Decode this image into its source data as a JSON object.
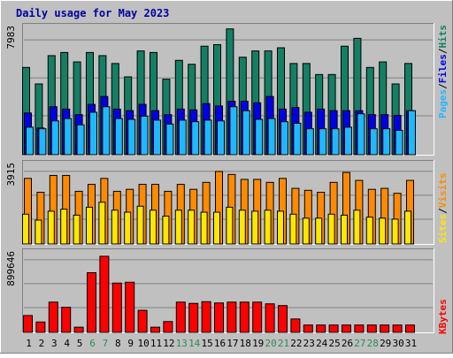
{
  "colors": {
    "background": "#c0c0c0",
    "title": "#0000a0",
    "hits": "#157f63",
    "files": "#0000e6",
    "pages": "#1fb8ff",
    "visits": "#ff8a00",
    "sites": "#ffe600",
    "kbytes": "#ff0000",
    "gridline": "#808080",
    "weekend_label": "#2e8b57",
    "weekday_label": "#000000"
  },
  "title": "Daily usage for May 2023",
  "legends": {
    "top": [
      "Pages",
      "/",
      "Files",
      "/",
      "Hits"
    ],
    "middle": [
      "Sites",
      "/",
      "Visits"
    ],
    "bottom": [
      "KBytes"
    ]
  },
  "axis_max_labels": {
    "top": "7983",
    "middle": "3915",
    "bottom": "899646"
  },
  "chart_data": [
    {
      "type": "bar",
      "name": "hits-files-pages",
      "categories": [
        "1",
        "2",
        "3",
        "4",
        "5",
        "6",
        "7",
        "8",
        "9",
        "10",
        "11",
        "12",
        "13",
        "14",
        "15",
        "16",
        "17",
        "18",
        "19",
        "20",
        "21",
        "22",
        "23",
        "24",
        "25",
        "26",
        "27",
        "28",
        "29",
        "30",
        "31"
      ],
      "weekend_days": [
        "6",
        "7",
        "13",
        "14",
        "20",
        "21",
        "27",
        "28"
      ],
      "ylim": [
        0,
        7983
      ],
      "series": [
        {
          "name": "Hits",
          "values": [
            5550,
            4500,
            6300,
            6500,
            5900,
            6500,
            6300,
            5800,
            4950,
            6600,
            6500,
            4800,
            6000,
            5750,
            6900,
            7000,
            8000,
            6200,
            6600,
            6600,
            6800,
            5800,
            5800,
            5100,
            5100,
            6900,
            7400,
            5550,
            5900,
            4500,
            5800
          ]
        },
        {
          "name": "Files",
          "values": [
            2650,
            1700,
            3050,
            2900,
            2550,
            3200,
            3700,
            2900,
            2800,
            3200,
            2800,
            2550,
            2900,
            2850,
            3250,
            3100,
            3400,
            3400,
            3300,
            3700,
            2900,
            3000,
            2700,
            2900,
            2800,
            2800,
            2800,
            2550,
            2550,
            2500,
            2800
          ]
        },
        {
          "name": "Pages",
          "values": [
            1750,
            1650,
            2150,
            2300,
            1900,
            2700,
            3050,
            2300,
            2250,
            2450,
            2200,
            1950,
            2200,
            2100,
            2200,
            2150,
            3050,
            2800,
            2250,
            2300,
            2100,
            2000,
            1650,
            1650,
            1650,
            1750,
            2600,
            1650,
            1650,
            1550,
            2800
          ]
        }
      ]
    },
    {
      "type": "bar",
      "name": "visits-sites",
      "categories": [
        "1",
        "2",
        "3",
        "4",
        "5",
        "6",
        "7",
        "8",
        "9",
        "10",
        "11",
        "12",
        "13",
        "14",
        "15",
        "16",
        "17",
        "18",
        "19",
        "20",
        "21",
        "22",
        "23",
        "24",
        "25",
        "26",
        "27",
        "28",
        "29",
        "30",
        "31"
      ],
      "ylim": [
        0,
        3915
      ],
      "series": [
        {
          "name": "Visits",
          "values": [
            3300,
            2600,
            3450,
            3450,
            2650,
            3000,
            3300,
            2650,
            2750,
            3000,
            3000,
            2650,
            3000,
            2750,
            3100,
            3650,
            3500,
            3250,
            3250,
            3100,
            3300,
            2800,
            2700,
            2600,
            3100,
            3600,
            3200,
            2750,
            2800,
            2550,
            3200
          ]
        },
        {
          "name": "Sites",
          "values": [
            1500,
            1200,
            1650,
            1750,
            1450,
            1850,
            2100,
            1700,
            1600,
            1900,
            1700,
            1400,
            1700,
            1700,
            1600,
            1600,
            1850,
            1700,
            1650,
            1700,
            1650,
            1500,
            1300,
            1300,
            1500,
            1450,
            1700,
            1350,
            1300,
            1250,
            1650
          ]
        }
      ]
    },
    {
      "type": "bar",
      "name": "kbytes",
      "categories": [
        "1",
        "2",
        "3",
        "4",
        "5",
        "6",
        "7",
        "8",
        "9",
        "10",
        "11",
        "12",
        "13",
        "14",
        "15",
        "16",
        "17",
        "18",
        "19",
        "20",
        "21",
        "22",
        "23",
        "24",
        "25",
        "26",
        "27",
        "28",
        "29",
        "30",
        "31"
      ],
      "ylim": [
        0,
        899646
      ],
      "series": [
        {
          "name": "KBytes",
          "values": [
            195000,
            120000,
            350000,
            290000,
            60000,
            690000,
            880000,
            570000,
            580000,
            255000,
            60000,
            125000,
            350000,
            335000,
            355000,
            340000,
            350000,
            350000,
            350000,
            330000,
            310000,
            155000,
            85000,
            85000,
            85000,
            85000,
            85000,
            85000,
            85000,
            85000,
            85000
          ]
        }
      ]
    }
  ]
}
